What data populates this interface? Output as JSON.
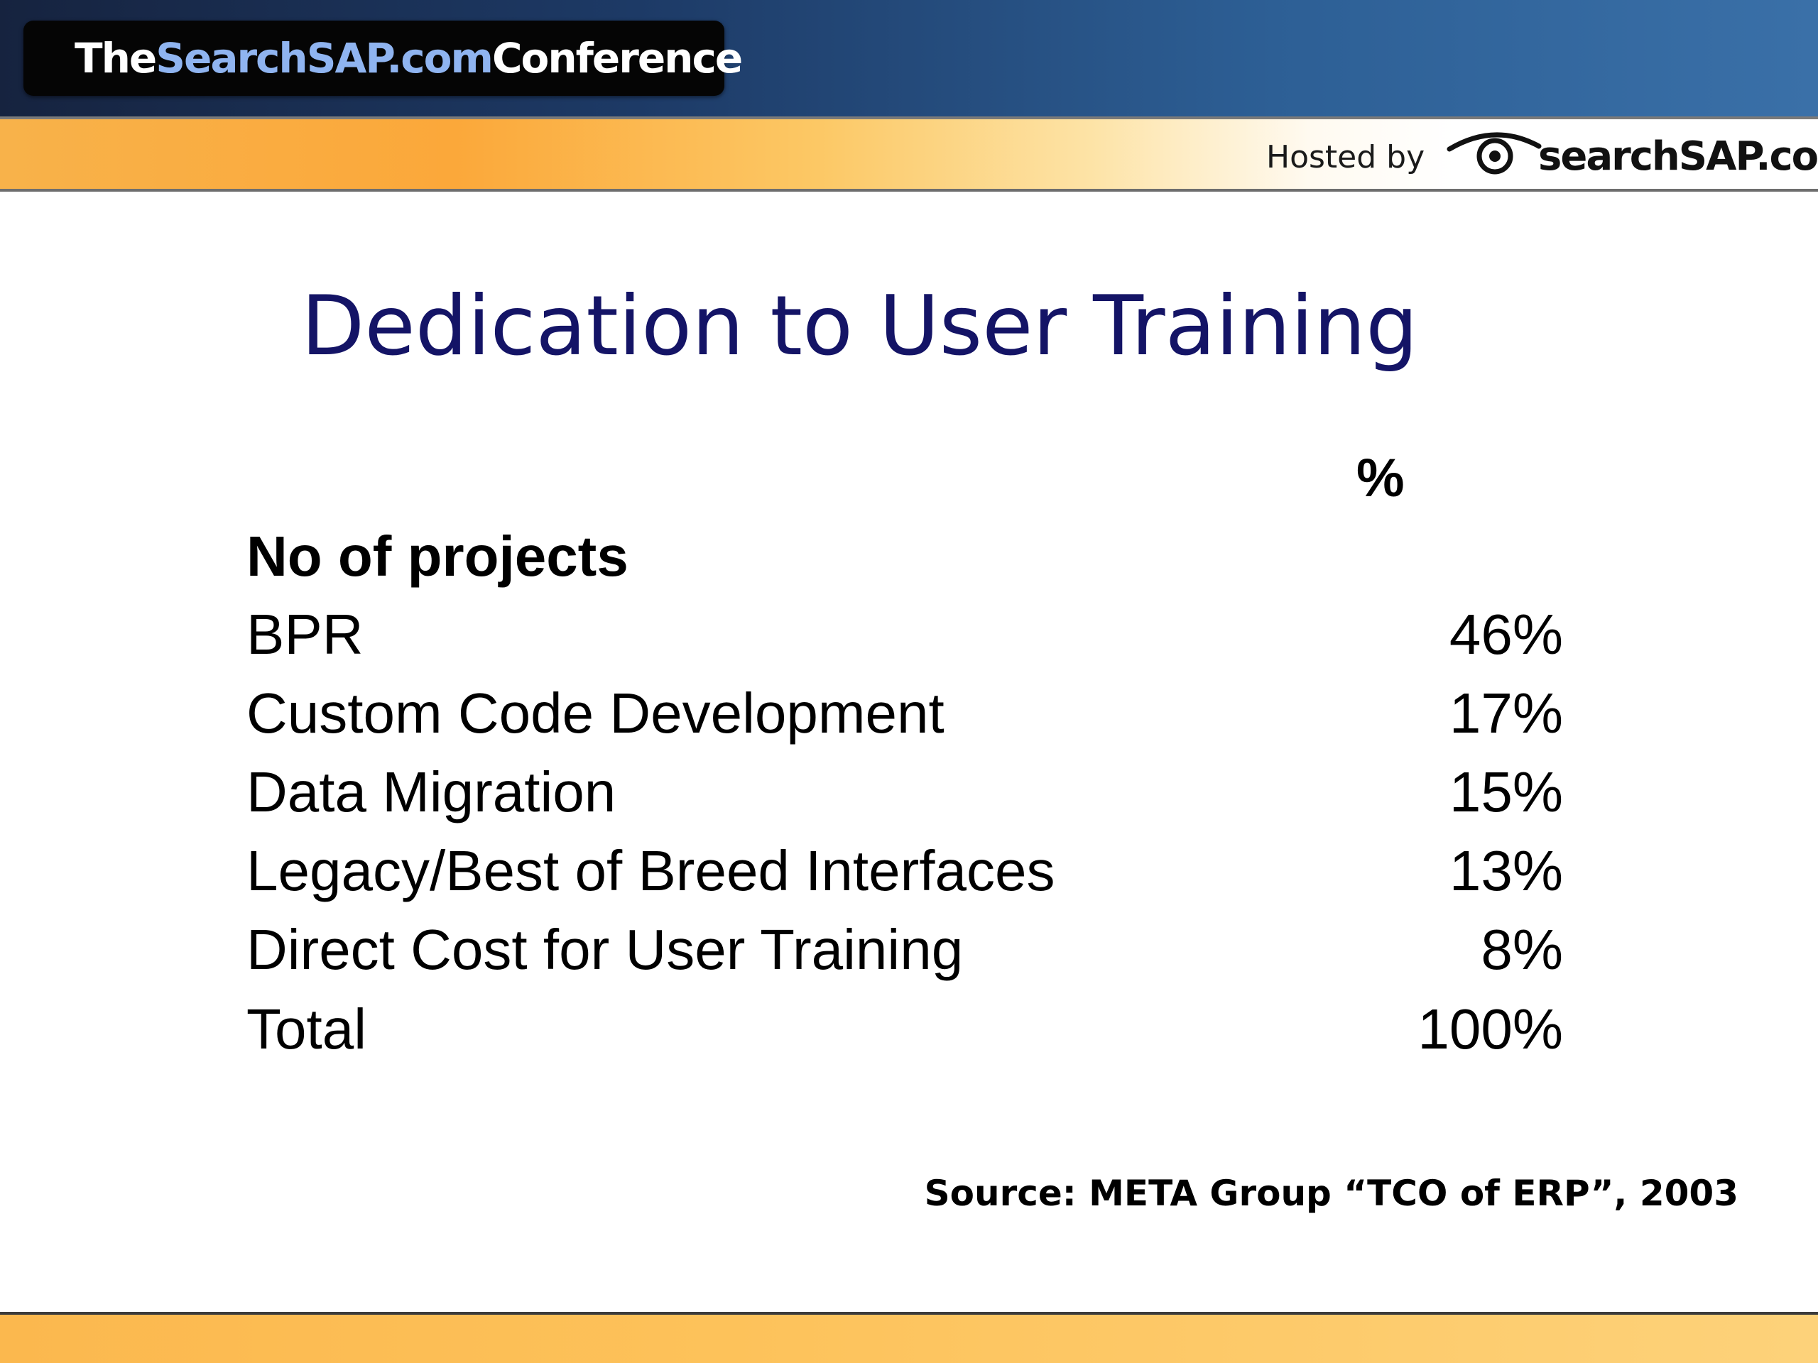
{
  "header": {
    "brand_prefix": "The ",
    "brand_highlight": "SearchSAP.com",
    "brand_suffix": " Conference",
    "hosted_by": "Hosted by",
    "logo_text": "searchSAP.com",
    "logo_icon": "eye-icon"
  },
  "slide": {
    "title": "Dedication to User Training",
    "column_header": "%",
    "table_heading": "No of projects",
    "rows": [
      {
        "label": "BPR",
        "value": "46%"
      },
      {
        "label": "Custom Code Development",
        "value": "17%"
      },
      {
        "label": "Data Migration",
        "value": "15%"
      },
      {
        "label": "Legacy/Best of Breed Interfaces",
        "value": "13%"
      },
      {
        "label": "Direct Cost for User Training",
        "value": "8%"
      },
      {
        "label": "Total",
        "value": "100%"
      }
    ],
    "source": "Source: META Group “TCO of ERP”, 2003"
  },
  "colors": {
    "title": "#141466",
    "brand_blue": "#8fb4f0",
    "header_blue": "#2d5f95",
    "orange": "#fba83a"
  }
}
